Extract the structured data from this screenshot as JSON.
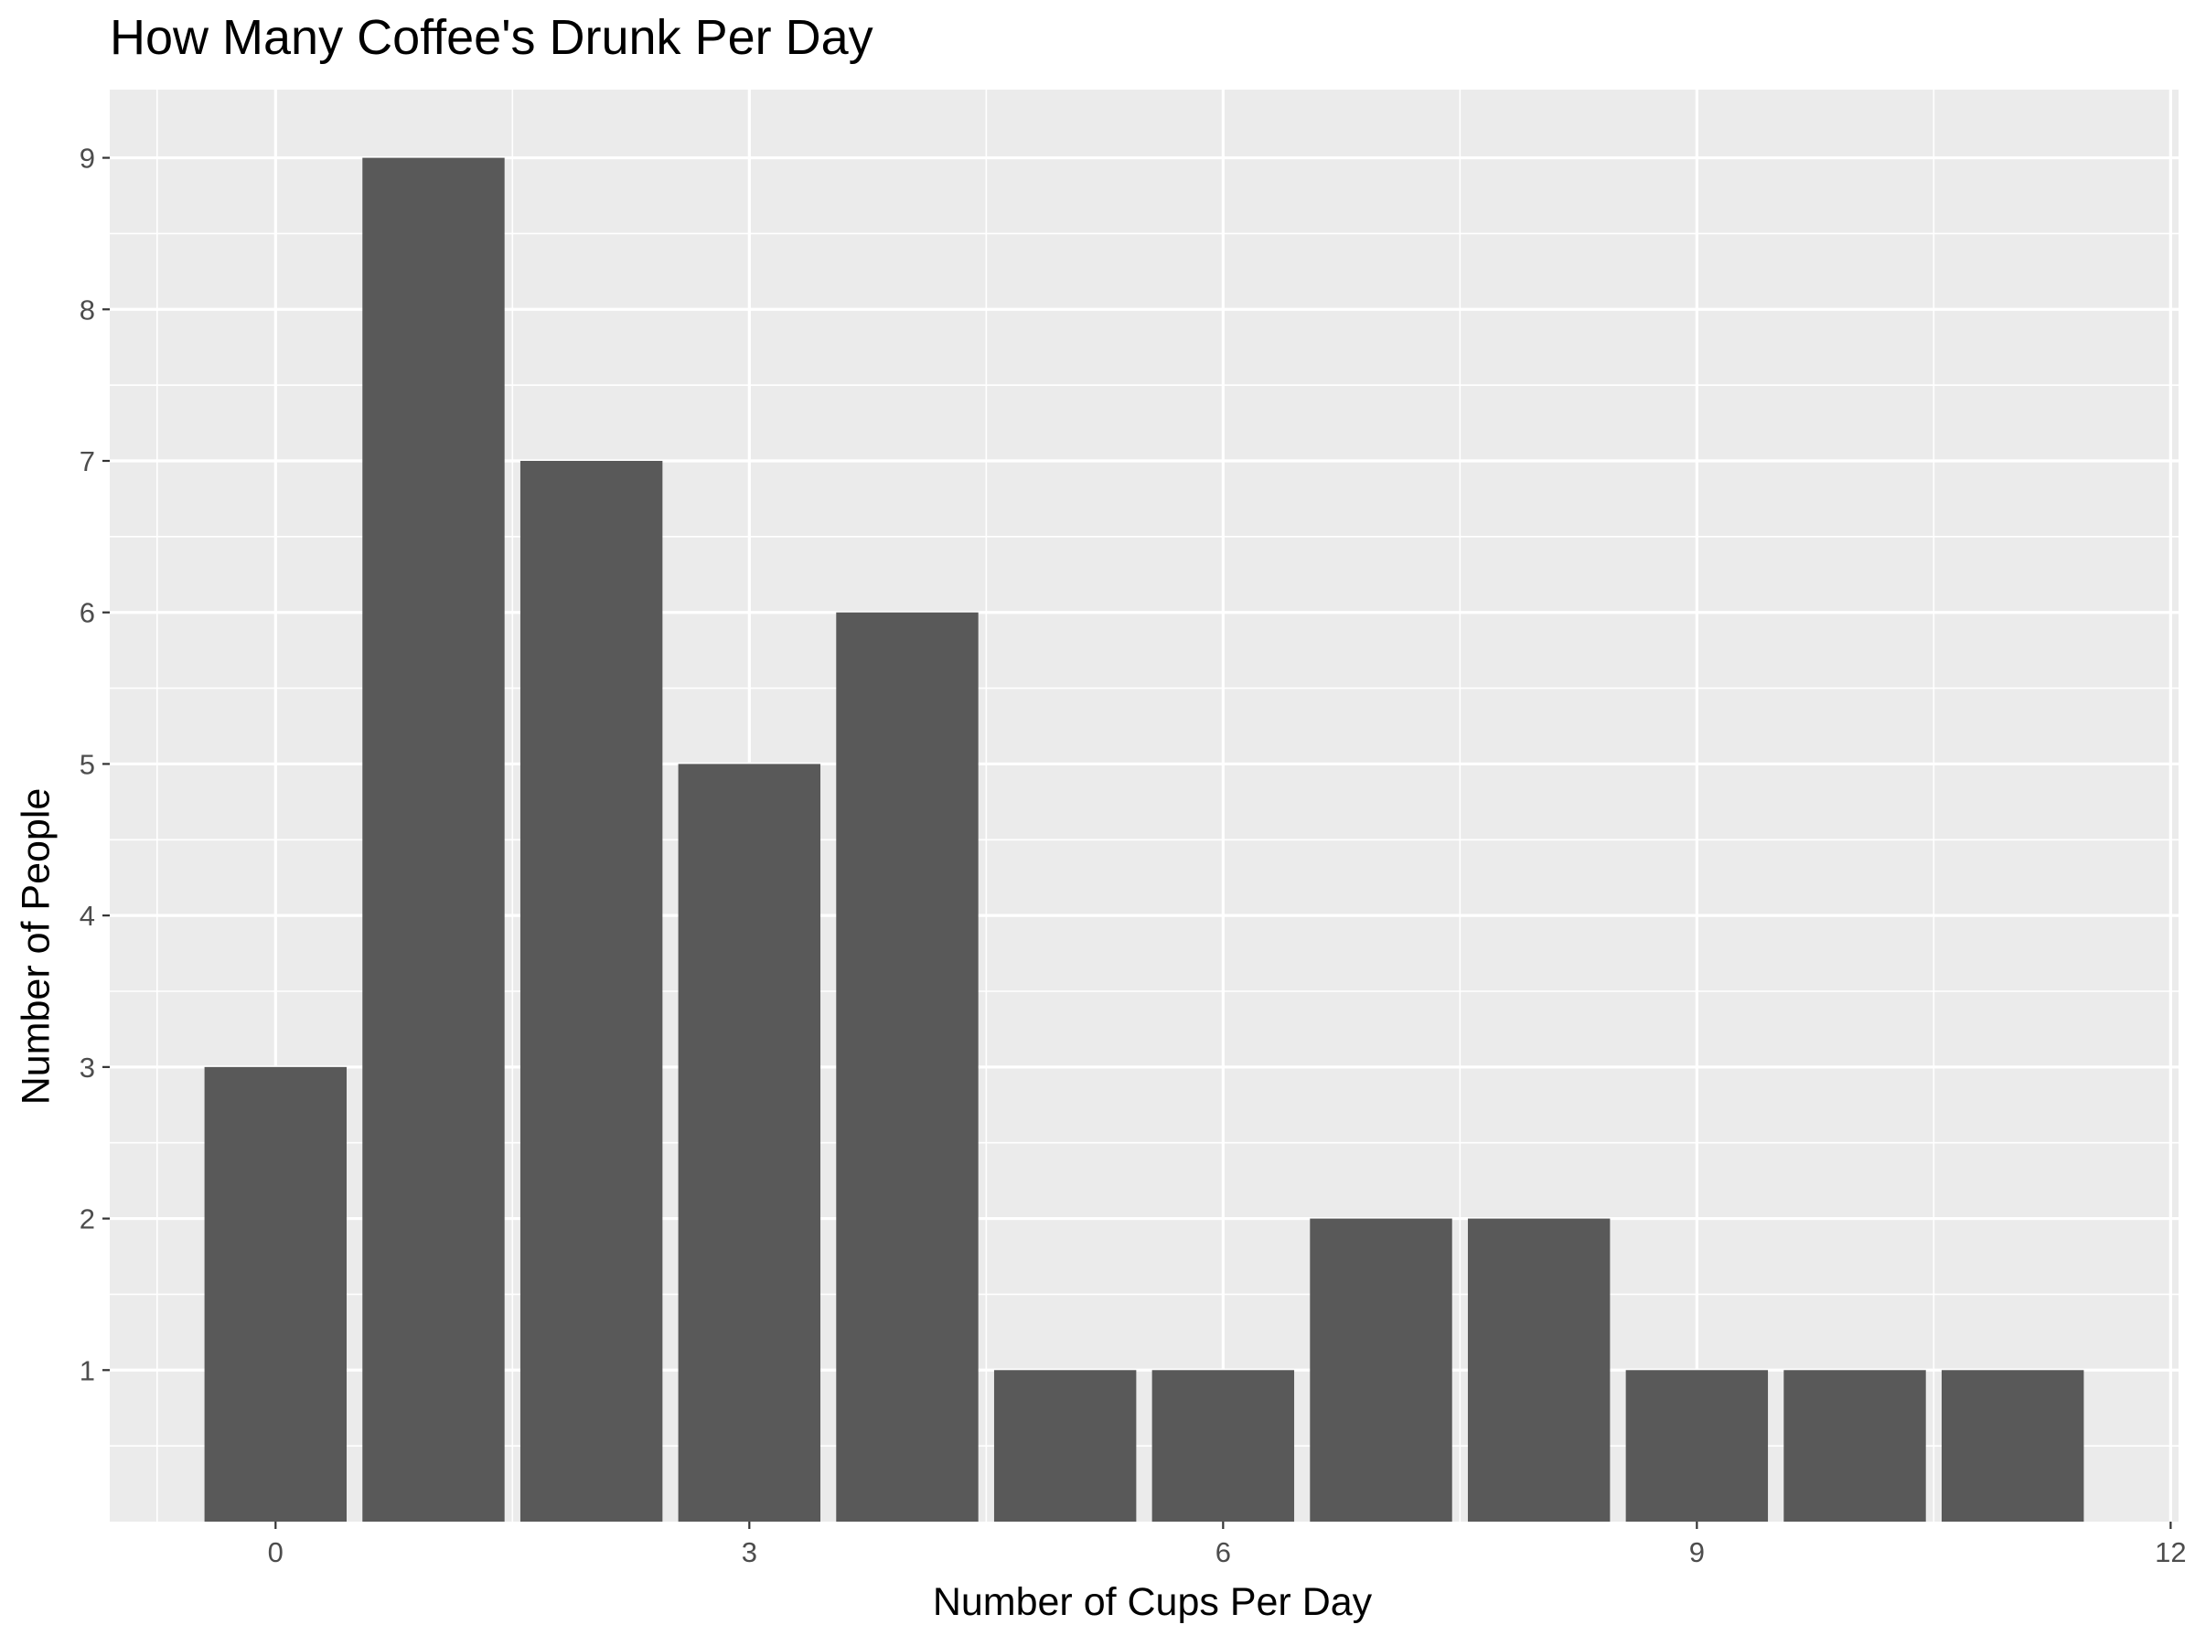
{
  "chart_data": {
    "type": "bar",
    "title": "How Many Coffee's Drunk Per Day",
    "xlabel": "Number of Cups Per Day",
    "ylabel": "Number of People",
    "x": [
      0,
      1,
      2,
      3,
      4,
      5,
      6,
      7,
      8,
      9,
      10,
      11
    ],
    "values": [
      3,
      9,
      7,
      5,
      6,
      1,
      1,
      2,
      2,
      1,
      1,
      1
    ],
    "xlim": [
      -1.05,
      12.05
    ],
    "ylim": [
      0,
      9.45
    ],
    "x_ticks": [
      0,
      3,
      6,
      9,
      12
    ],
    "y_ticks": [
      1,
      2,
      3,
      4,
      5,
      6,
      7,
      8,
      9
    ],
    "grid": true,
    "colors": {
      "bar": "#595959",
      "panel_background": "#ebebeb",
      "grid": "#ffffff",
      "tick_label": "#4d4d4d",
      "tick_mark": "#333333"
    }
  }
}
